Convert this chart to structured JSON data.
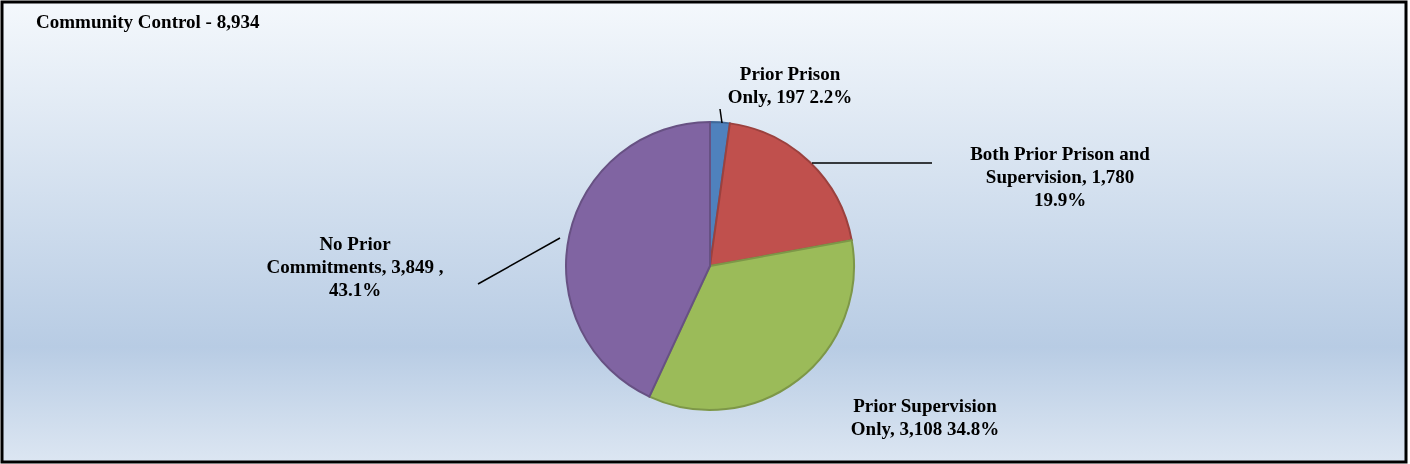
{
  "chart_data": {
    "type": "pie",
    "title": "Community Control - 8,934",
    "categories": [
      "Prior Prison Only",
      "Both Prior Prison and Supervision",
      "Prior Supervision Only",
      "No Prior Commitments"
    ],
    "values": [
      197,
      1780,
      3108,
      3849
    ],
    "value_labels": [
      "197 2.2%",
      "1,780 19.9%",
      "3,108 34.8%",
      "3,849 , 43.1%"
    ],
    "colors": [
      "#4f81bd",
      "#c0504d",
      "#9bbb59",
      "#8064a2"
    ],
    "legend": false
  }
}
